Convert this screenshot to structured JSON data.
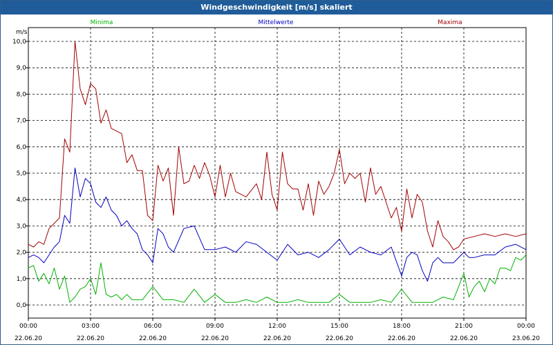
{
  "window": {
    "title": "Windgeschwindigkeit [m/s] skaliert"
  },
  "chart_data": {
    "type": "line",
    "title": "Windgeschwindigkeit [m/s] skaliert",
    "ylabel": "m/s",
    "xlabel": "",
    "ylim": [
      0,
      10
    ],
    "xlim": [
      0,
      24
    ],
    "grid": true,
    "legend": "top",
    "y_ticks": [
      "0,0",
      "1,0",
      "2,0",
      "3,0",
      "4,0",
      "5,0",
      "6,0",
      "7,0",
      "8,0",
      "9,0",
      "10,0"
    ],
    "x_ticks": [
      {
        "time": "00:00",
        "date": "22.06.20"
      },
      {
        "time": "03:00",
        "date": "22.06.20"
      },
      {
        "time": "06:00",
        "date": "22.06.20"
      },
      {
        "time": "09:00",
        "date": "22.06.20"
      },
      {
        "time": "12:00",
        "date": "22.06.20"
      },
      {
        "time": "15:00",
        "date": "22.06.20"
      },
      {
        "time": "18:00",
        "date": "22.06.20"
      },
      {
        "time": "21:00",
        "date": "22.06.20"
      },
      {
        "time": "00:00",
        "date": "23.06.20"
      }
    ],
    "series": [
      {
        "name": "Minima",
        "color": "#00b000",
        "x": [
          0.0,
          0.25,
          0.5,
          0.75,
          1.0,
          1.25,
          1.5,
          1.75,
          2.0,
          2.25,
          2.5,
          2.75,
          3.0,
          3.25,
          3.5,
          3.75,
          4.0,
          4.25,
          4.5,
          4.75,
          5.0,
          5.5,
          6.0,
          6.5,
          7.0,
          7.5,
          8.0,
          8.5,
          9.0,
          9.5,
          10.0,
          10.5,
          11.0,
          11.5,
          12.0,
          12.5,
          13.0,
          13.5,
          14.0,
          14.5,
          15.0,
          15.5,
          16.0,
          16.5,
          17.0,
          17.5,
          18.0,
          18.5,
          19.0,
          19.5,
          20.0,
          20.5,
          21.0,
          21.25,
          21.5,
          21.75,
          22.0,
          22.25,
          22.5,
          22.75,
          23.0,
          23.25,
          23.5,
          23.75,
          24.0
        ],
        "values": [
          1.4,
          1.5,
          0.9,
          1.2,
          0.8,
          1.4,
          0.6,
          1.1,
          0.1,
          0.3,
          0.6,
          0.7,
          1.0,
          0.4,
          1.6,
          0.4,
          0.3,
          0.4,
          0.2,
          0.4,
          0.2,
          0.2,
          0.7,
          0.2,
          0.2,
          0.1,
          0.6,
          0.1,
          0.4,
          0.1,
          0.1,
          0.2,
          0.1,
          0.3,
          0.1,
          0.1,
          0.2,
          0.1,
          0.1,
          0.1,
          0.4,
          0.1,
          0.1,
          0.1,
          0.2,
          0.1,
          0.6,
          0.1,
          0.1,
          0.1,
          0.3,
          0.2,
          1.2,
          0.3,
          0.7,
          0.9,
          0.5,
          1.0,
          0.8,
          1.4,
          1.4,
          1.3,
          1.8,
          1.7,
          1.9
        ]
      },
      {
        "name": "Mittelwerte",
        "color": "#0000c0",
        "x": [
          0.0,
          0.25,
          0.5,
          0.75,
          1.0,
          1.25,
          1.5,
          1.75,
          2.0,
          2.25,
          2.5,
          2.75,
          3.0,
          3.25,
          3.5,
          3.75,
          4.0,
          4.25,
          4.5,
          4.75,
          5.0,
          5.25,
          5.5,
          5.75,
          6.0,
          6.25,
          6.5,
          6.75,
          7.0,
          7.5,
          8.0,
          8.5,
          9.0,
          9.5,
          10.0,
          10.5,
          11.0,
          11.5,
          12.0,
          12.5,
          13.0,
          13.5,
          14.0,
          14.5,
          15.0,
          15.5,
          16.0,
          16.5,
          17.0,
          17.5,
          18.0,
          18.25,
          18.5,
          18.75,
          19.0,
          19.25,
          19.5,
          19.75,
          20.0,
          20.5,
          21.0,
          21.25,
          21.5,
          22.0,
          22.5,
          23.0,
          23.5,
          24.0
        ],
        "values": [
          1.8,
          1.9,
          1.8,
          1.6,
          1.9,
          2.2,
          2.4,
          3.4,
          3.1,
          5.2,
          4.1,
          4.8,
          4.6,
          3.9,
          3.7,
          4.1,
          3.6,
          3.4,
          3.0,
          3.2,
          2.9,
          2.7,
          2.1,
          1.9,
          1.6,
          2.9,
          2.7,
          2.2,
          2.0,
          2.9,
          3.0,
          2.1,
          2.1,
          2.2,
          2.0,
          2.4,
          2.3,
          2.0,
          1.7,
          2.3,
          1.9,
          2.0,
          1.8,
          2.1,
          2.5,
          1.9,
          2.2,
          2.0,
          1.9,
          2.2,
          1.1,
          1.8,
          2.0,
          1.9,
          1.3,
          0.9,
          1.6,
          1.8,
          1.6,
          1.6,
          2.0,
          1.8,
          1.8,
          1.9,
          1.9,
          2.2,
          2.3,
          2.1
        ]
      },
      {
        "name": "Maxima",
        "color": "#a00000",
        "x": [
          0.0,
          0.25,
          0.5,
          0.75,
          1.0,
          1.25,
          1.5,
          1.75,
          2.0,
          2.25,
          2.5,
          2.75,
          3.0,
          3.25,
          3.5,
          3.75,
          4.0,
          4.25,
          4.5,
          4.75,
          5.0,
          5.25,
          5.5,
          5.75,
          6.0,
          6.25,
          6.5,
          6.75,
          7.0,
          7.25,
          7.5,
          7.75,
          8.0,
          8.25,
          8.5,
          8.75,
          9.0,
          9.25,
          9.5,
          9.75,
          10.0,
          10.5,
          11.0,
          11.25,
          11.5,
          11.75,
          12.0,
          12.25,
          12.5,
          12.75,
          13.0,
          13.25,
          13.5,
          13.75,
          14.0,
          14.25,
          14.5,
          14.75,
          15.0,
          15.25,
          15.5,
          15.75,
          16.0,
          16.25,
          16.5,
          16.75,
          17.0,
          17.25,
          17.5,
          17.75,
          18.0,
          18.25,
          18.5,
          18.75,
          19.0,
          19.25,
          19.5,
          19.75,
          20.0,
          20.25,
          20.5,
          20.75,
          21.0,
          21.5,
          22.0,
          22.5,
          23.0,
          23.5,
          24.0
        ],
        "values": [
          2.3,
          2.2,
          2.4,
          2.3,
          2.9,
          3.1,
          3.3,
          6.3,
          5.8,
          10.0,
          8.2,
          7.6,
          8.4,
          8.2,
          6.9,
          7.4,
          6.7,
          6.6,
          6.5,
          5.4,
          5.7,
          5.1,
          5.1,
          3.4,
          3.2,
          5.3,
          4.7,
          5.2,
          3.4,
          6.0,
          4.6,
          4.7,
          5.3,
          4.8,
          5.4,
          4.9,
          4.1,
          5.3,
          4.1,
          5.0,
          4.3,
          4.1,
          4.6,
          4.0,
          5.8,
          4.2,
          3.6,
          5.8,
          4.6,
          4.4,
          4.4,
          3.6,
          4.6,
          3.4,
          4.7,
          4.2,
          4.5,
          5.0,
          5.9,
          4.6,
          5.0,
          4.8,
          5.0,
          3.9,
          5.2,
          4.2,
          4.5,
          3.9,
          3.3,
          3.7,
          2.8,
          4.4,
          3.3,
          4.2,
          3.9,
          2.8,
          2.2,
          3.2,
          2.6,
          2.4,
          2.1,
          2.2,
          2.5,
          2.6,
          2.7,
          2.6,
          2.7,
          2.6,
          2.7
        ]
      }
    ]
  }
}
